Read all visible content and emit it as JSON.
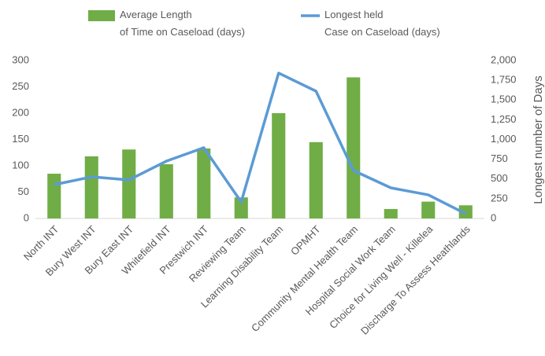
{
  "chart_data": {
    "type": "bar-line",
    "categories": [
      "North INT",
      "Bury West INT",
      "Bury East INT",
      "Whitefield INT",
      "Prestwich INT",
      "Reviewing Team",
      "Learning Disability Team",
      "OPMHT",
      "Community Mental Health Team",
      "Hospital Social Work Team",
      "Choice for Living Well - Killelea",
      "Discharge To Assess Heathlands"
    ],
    "series": [
      {
        "name": "Average Length of Time on Caseload (days)",
        "type": "bar",
        "color": "#70ad47",
        "values": [
          85,
          118,
          131,
          103,
          133,
          40,
          200,
          145,
          268,
          18,
          32,
          25
        ]
      },
      {
        "name": "Longest held Case on Caseload (days)",
        "type": "line",
        "axis": "y2",
        "color": "#5b9bd5",
        "values": [
          428,
          527,
          488,
          726,
          896,
          209,
          1841,
          1612,
          607,
          388,
          299,
          60
        ]
      }
    ],
    "ylim": [
      0,
      300
    ],
    "yticks": [
      0,
      50,
      100,
      150,
      200,
      250,
      300
    ],
    "y2lim": [
      0,
      2000
    ],
    "y2ticks": [
      0,
      250,
      500,
      750,
      {
        "value": 1000,
        "label": "1,000"
      },
      {
        "value": 1250,
        "label": "1,250"
      },
      {
        "value": 1500,
        "label": "1,500"
      },
      {
        "value": 1750,
        "label": "1,750"
      },
      {
        "value": 2000,
        "label": "2,000"
      }
    ],
    "y2_label": "Longest number of Days",
    "grid": false
  }
}
